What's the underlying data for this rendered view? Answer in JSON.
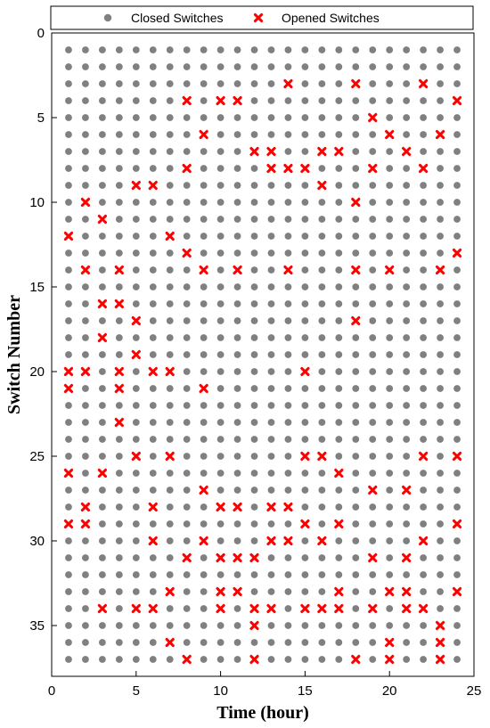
{
  "chart_data": {
    "type": "scatter",
    "xlabel": "Time (hour)",
    "ylabel": "Switch Number",
    "xlim": [
      0,
      25
    ],
    "ylim": [
      38,
      0
    ],
    "x_ticks": [
      0,
      5,
      10,
      15,
      20,
      25
    ],
    "y_ticks": [
      0,
      5,
      10,
      15,
      20,
      25,
      30,
      35
    ],
    "hours": [
      1,
      24
    ],
    "switches": [
      1,
      37
    ],
    "legend_position": "top",
    "series": [
      {
        "name": "Closed Switches",
        "marker": "circle",
        "color": "#808080",
        "rule": "every hour/switch pair not listed as opened"
      },
      {
        "name": "Opened Switches",
        "marker": "x",
        "color": "#ff0000",
        "opened": {
          "1": [
            12,
            20,
            21,
            26,
            29
          ],
          "2": [
            10,
            14,
            20,
            28,
            29
          ],
          "3": [
            11,
            16,
            18,
            26,
            34
          ],
          "4": [
            14,
            16,
            20,
            21,
            23
          ],
          "5": [
            9,
            17,
            19,
            25,
            34
          ],
          "6": [
            9,
            20,
            28,
            30,
            34
          ],
          "7": [
            12,
            20,
            25,
            33,
            36
          ],
          "8": [
            4,
            8,
            13,
            31,
            37
          ],
          "9": [
            6,
            14,
            21,
            27,
            30
          ],
          "10": [
            4,
            28,
            31,
            33,
            34
          ],
          "11": [
            4,
            14,
            28,
            31,
            33
          ],
          "12": [
            7,
            31,
            34,
            35,
            37
          ],
          "13": [
            7,
            8,
            28,
            30,
            34
          ],
          "14": [
            3,
            8,
            14,
            28,
            30
          ],
          "15": [
            8,
            20,
            25,
            29,
            34
          ],
          "16": [
            7,
            9,
            25,
            30,
            34
          ],
          "17": [
            7,
            26,
            29,
            33,
            34
          ],
          "18": [
            3,
            10,
            14,
            17,
            37
          ],
          "19": [
            5,
            8,
            27,
            31,
            34
          ],
          "20": [
            6,
            14,
            33,
            36,
            37
          ],
          "21": [
            7,
            27,
            31,
            33,
            34
          ],
          "22": [
            3,
            8,
            25,
            30,
            34
          ],
          "23": [
            6,
            14,
            35,
            36,
            37
          ],
          "24": [
            4,
            13,
            25,
            29,
            33
          ]
        }
      }
    ]
  }
}
